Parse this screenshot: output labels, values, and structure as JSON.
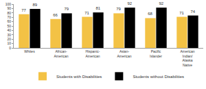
{
  "chart_data": {
    "type": "bar",
    "categories": [
      "Whites",
      "African-American",
      "Hispanic-American",
      "Asian-American",
      "Pacific Islander",
      "American Indian/Alaska Native"
    ],
    "series": [
      {
        "name": "Students with Disabilities",
        "color": "#f3c245",
        "values": [
          77,
          66,
          71,
          79,
          68,
          71
        ]
      },
      {
        "name": "Students without Disabilities",
        "color": "#000000",
        "values": [
          89,
          79,
          81,
          92,
          92,
          74
        ]
      }
    ],
    "ylim": [
      0,
      100
    ],
    "yticks": [
      0,
      10,
      20,
      30,
      40,
      50,
      60,
      70,
      80,
      90,
      100
    ],
    "grid": false,
    "legend": "bottom",
    "data_labels": true
  }
}
